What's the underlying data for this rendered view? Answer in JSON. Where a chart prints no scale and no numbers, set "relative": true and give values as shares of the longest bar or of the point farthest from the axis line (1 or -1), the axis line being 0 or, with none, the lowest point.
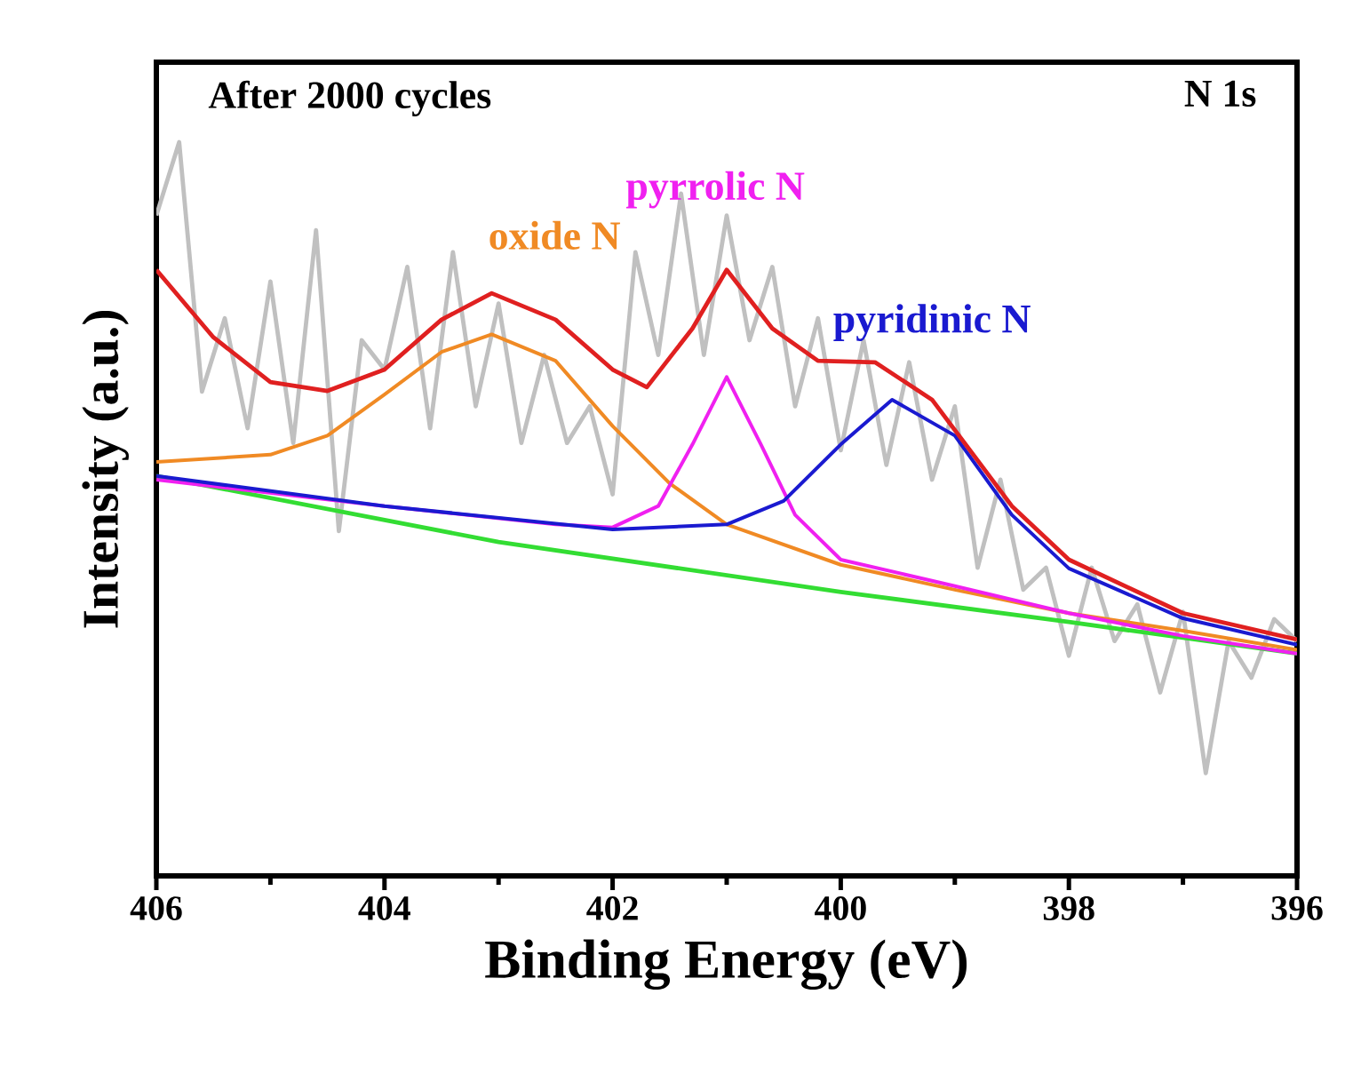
{
  "chart_data": {
    "type": "line",
    "relative": true,
    "xlabel": "Binding Energy (eV)",
    "ylabel": "Intensity (a.u.)",
    "annotations": [
      "After 2000 cycles",
      "N 1s"
    ],
    "xlim": [
      406,
      396
    ],
    "xticks": [
      406,
      404,
      402,
      400,
      398,
      396
    ],
    "series": [
      {
        "color": "#c0c0c0",
        "x": [
          406.0,
          405.8,
          405.6,
          405.4,
          405.2,
          405.0,
          404.8,
          404.6,
          404.4,
          404.2,
          404.0,
          403.8,
          403.6,
          403.4,
          403.2,
          403.0,
          402.8,
          402.6,
          402.4,
          402.2,
          402.0,
          401.8,
          401.6,
          401.4,
          401.2,
          401.0,
          400.8,
          400.6,
          400.4,
          400.2,
          400.0,
          399.8,
          399.6,
          399.4,
          399.2,
          399.0,
          398.8,
          398.6,
          398.4,
          398.2,
          398.0,
          397.8,
          397.6,
          397.4,
          397.2,
          397.0,
          396.8,
          396.6,
          396.4,
          396.2,
          396.0
        ],
        "values": [
          0.9,
          1.0,
          0.66,
          0.76,
          0.61,
          0.81,
          0.59,
          0.88,
          0.47,
          0.73,
          0.69,
          0.83,
          0.61,
          0.85,
          0.64,
          0.78,
          0.59,
          0.71,
          0.59,
          0.64,
          0.52,
          0.85,
          0.71,
          0.93,
          0.71,
          0.9,
          0.73,
          0.83,
          0.64,
          0.76,
          0.58,
          0.73,
          0.56,
          0.7,
          0.54,
          0.64,
          0.42,
          0.54,
          0.39,
          0.42,
          0.3,
          0.42,
          0.32,
          0.37,
          0.25,
          0.36,
          0.14,
          0.32,
          0.27,
          0.35,
          0.32
        ]
      },
      {
        "color": "#33dd33",
        "x": [
          406,
          403,
          400,
          398,
          396
        ],
        "values": [
          0.545,
          0.455,
          0.387,
          0.346,
          0.303
        ]
      },
      {
        "name": "oxide N",
        "color": "#f08a24",
        "x": [
          406,
          405,
          404.5,
          404,
          403.5,
          403.06,
          402.5,
          402,
          401.5,
          401,
          400,
          399,
          398,
          397,
          396
        ],
        "values": [
          0.564,
          0.574,
          0.6,
          0.656,
          0.714,
          0.738,
          0.702,
          0.613,
          0.535,
          0.479,
          0.424,
          0.39,
          0.358,
          0.334,
          0.308
        ]
      },
      {
        "name": "pyrrolic N",
        "color": "#f020f0",
        "x": [
          406,
          404,
          402.5,
          402,
          401.6,
          401.3,
          401.0,
          400.7,
          400.4,
          400,
          399,
          398,
          397,
          396
        ],
        "values": [
          0.54,
          0.504,
          0.479,
          0.475,
          0.504,
          0.588,
          0.68,
          0.588,
          0.492,
          0.431,
          0.395,
          0.358,
          0.327,
          0.303
        ]
      },
      {
        "name": "pyridinic N",
        "color": "#1a1ad0",
        "x": [
          406,
          404,
          402,
          401,
          400.5,
          400,
          399.55,
          399,
          398.5,
          398,
          397,
          396
        ],
        "values": [
          0.545,
          0.504,
          0.472,
          0.479,
          0.511,
          0.588,
          0.649,
          0.6,
          0.492,
          0.419,
          0.351,
          0.315
        ]
      },
      {
        "color": "#e02020",
        "x": [
          406,
          405.5,
          405,
          404.5,
          404,
          403.5,
          403.06,
          402.5,
          402,
          401.7,
          401.3,
          401.0,
          400.6,
          400.2,
          399.7,
          399.2,
          398.5,
          398,
          397,
          396
        ],
        "values": [
          0.826,
          0.734,
          0.673,
          0.661,
          0.69,
          0.758,
          0.794,
          0.758,
          0.69,
          0.666,
          0.746,
          0.826,
          0.746,
          0.702,
          0.7,
          0.649,
          0.504,
          0.431,
          0.358,
          0.322
        ]
      }
    ]
  }
}
